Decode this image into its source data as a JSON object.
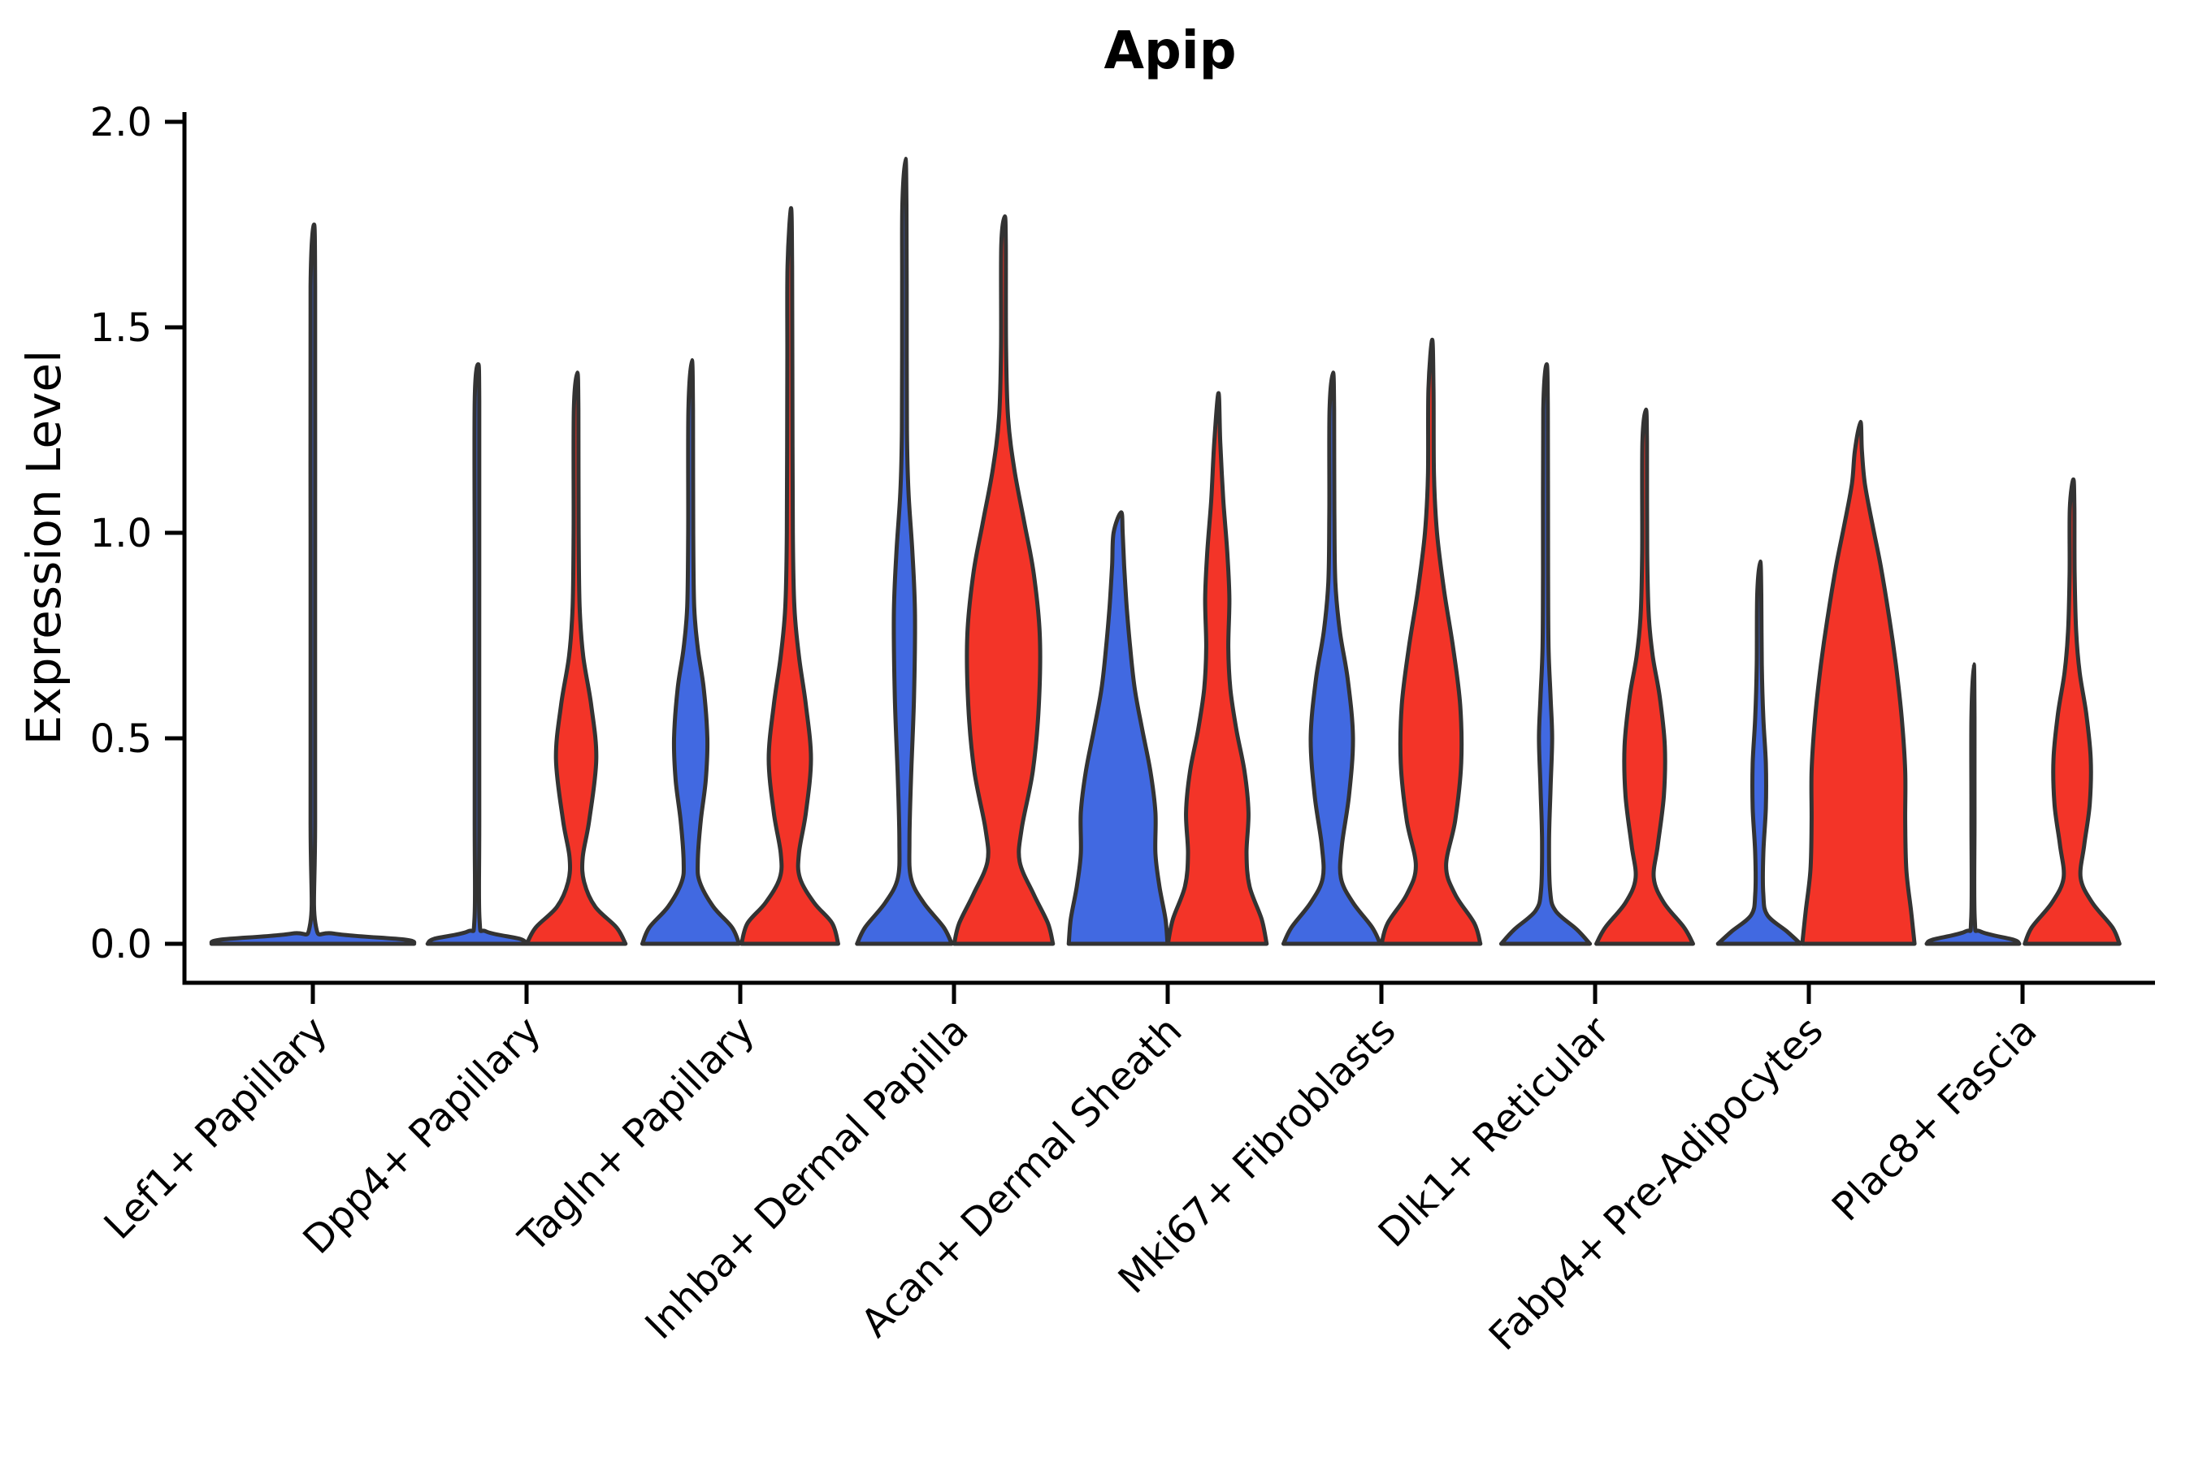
{
  "chart_data": {
    "type": "violin",
    "title": "Apip",
    "xlabel": "",
    "ylabel": "Expression Level",
    "ylim": [
      0.0,
      2.0
    ],
    "yticks": [
      "0.0",
      "0.5",
      "1.0",
      "1.5",
      "2.0"
    ],
    "ytick_values": [
      0.0,
      0.5,
      1.0,
      1.5,
      2.0
    ],
    "grid": false,
    "legend_position": "none",
    "categories": [
      "Lef1+ Papillary",
      "Dpp4+ Papillary",
      "Tagln+ Papillary",
      "Inhba+ Dermal Papilla",
      "Acan+ Dermal Sheath",
      "Mki67+ Fibroblasts",
      "Dlk1+ Reticular",
      "Fabp4+ Pre-Adipocytes",
      "Plac8+ Fascia"
    ],
    "colors": {
      "group1": "#4169E1",
      "group2": "#F33428",
      "edge": "#333333",
      "axis": "#000000"
    },
    "violins": [
      {
        "category_index": 0,
        "category": "Lef1+ Papillary",
        "group": "single",
        "color": "group1",
        "max": 1.75,
        "half_width": 126,
        "profile": [
          [
            0,
            0.99
          ],
          [
            0.01,
            0.9
          ],
          [
            0.025,
            0.2
          ],
          [
            0.05,
            0.025
          ],
          [
            0.3,
            0.022
          ],
          [
            1.0,
            0.022
          ],
          [
            1.6,
            0.022
          ],
          [
            1.75,
            0.012
          ]
        ]
      },
      {
        "category_index": 1,
        "category": "Dpp4+ Papillary",
        "group": "group1",
        "color": "group1",
        "max": 1.41,
        "half_width": 62,
        "profile": [
          [
            0,
            0.98
          ],
          [
            0.012,
            0.85
          ],
          [
            0.03,
            0.18
          ],
          [
            0.06,
            0.05
          ],
          [
            0.3,
            0.045
          ],
          [
            0.9,
            0.045
          ],
          [
            1.32,
            0.045
          ],
          [
            1.41,
            0.025
          ]
        ]
      },
      {
        "category_index": 1,
        "category": "Dpp4+ Papillary",
        "group": "group2",
        "color": "group2",
        "max": 1.39,
        "half_width": 62,
        "profile": [
          [
            0,
            0.98
          ],
          [
            0.04,
            0.8
          ],
          [
            0.09,
            0.38
          ],
          [
            0.15,
            0.16
          ],
          [
            0.21,
            0.13
          ],
          [
            0.3,
            0.26
          ],
          [
            0.45,
            0.4
          ],
          [
            0.58,
            0.3
          ],
          [
            0.7,
            0.14
          ],
          [
            0.82,
            0.07
          ],
          [
            1.0,
            0.05
          ],
          [
            1.3,
            0.045
          ],
          [
            1.39,
            0.025
          ]
        ]
      },
      {
        "category_index": 2,
        "category": "Tagln+ Papillary",
        "group": "group1",
        "color": "group1",
        "max": 1.42,
        "half_width": 62,
        "profile": [
          [
            0,
            0.96
          ],
          [
            0.04,
            0.82
          ],
          [
            0.09,
            0.45
          ],
          [
            0.15,
            0.18
          ],
          [
            0.2,
            0.14
          ],
          [
            0.3,
            0.2
          ],
          [
            0.4,
            0.3
          ],
          [
            0.5,
            0.33
          ],
          [
            0.62,
            0.26
          ],
          [
            0.72,
            0.14
          ],
          [
            0.82,
            0.07
          ],
          [
            1.0,
            0.05
          ],
          [
            1.3,
            0.045
          ],
          [
            1.42,
            0.025
          ]
        ]
      },
      {
        "category_index": 2,
        "category": "Tagln+ Papillary",
        "group": "group2",
        "color": "group2",
        "max": 1.79,
        "half_width": 62,
        "profile": [
          [
            0,
            0.96
          ],
          [
            0.05,
            0.84
          ],
          [
            0.1,
            0.48
          ],
          [
            0.16,
            0.2
          ],
          [
            0.22,
            0.18
          ],
          [
            0.32,
            0.32
          ],
          [
            0.45,
            0.42
          ],
          [
            0.58,
            0.32
          ],
          [
            0.7,
            0.18
          ],
          [
            0.82,
            0.09
          ],
          [
            1.0,
            0.06
          ],
          [
            1.4,
            0.05
          ],
          [
            1.65,
            0.045
          ],
          [
            1.79,
            0.025
          ]
        ]
      },
      {
        "category_index": 3,
        "category": "Inhba+ Dermal Papilla",
        "group": "group1",
        "color": "group1",
        "max": 1.91,
        "half_width": 62,
        "profile": [
          [
            0,
            0.94
          ],
          [
            0.04,
            0.78
          ],
          [
            0.1,
            0.38
          ],
          [
            0.16,
            0.13
          ],
          [
            0.25,
            0.1
          ],
          [
            0.4,
            0.13
          ],
          [
            0.6,
            0.19
          ],
          [
            0.8,
            0.21
          ],
          [
            0.95,
            0.16
          ],
          [
            1.1,
            0.08
          ],
          [
            1.25,
            0.05
          ],
          [
            1.6,
            0.045
          ],
          [
            1.8,
            0.04
          ],
          [
            1.91,
            0.022
          ]
        ]
      },
      {
        "category_index": 3,
        "category": "Inhba+ Dermal Papilla",
        "group": "group2",
        "color": "group2",
        "max": 1.77,
        "half_width": 62,
        "profile": [
          [
            0,
            0.98
          ],
          [
            0.05,
            0.88
          ],
          [
            0.12,
            0.6
          ],
          [
            0.2,
            0.32
          ],
          [
            0.28,
            0.36
          ],
          [
            0.42,
            0.58
          ],
          [
            0.58,
            0.7
          ],
          [
            0.75,
            0.72
          ],
          [
            0.9,
            0.6
          ],
          [
            1.02,
            0.42
          ],
          [
            1.15,
            0.22
          ],
          [
            1.28,
            0.09
          ],
          [
            1.45,
            0.05
          ],
          [
            1.7,
            0.045
          ],
          [
            1.77,
            0.025
          ]
        ]
      },
      {
        "category_index": 4,
        "category": "Acan+ Dermal Sheath",
        "group": "group1",
        "color": "group1",
        "max": 1.05,
        "half_width": 62,
        "profile": [
          [
            0,
            0.98
          ],
          [
            0.06,
            0.94
          ],
          [
            0.14,
            0.82
          ],
          [
            0.22,
            0.74
          ],
          [
            0.32,
            0.74
          ],
          [
            0.42,
            0.64
          ],
          [
            0.52,
            0.48
          ],
          [
            0.62,
            0.33
          ],
          [
            0.72,
            0.24
          ],
          [
            0.82,
            0.17
          ],
          [
            0.92,
            0.12
          ],
          [
            1.0,
            0.09
          ],
          [
            1.05,
            0.06
          ]
        ]
      },
      {
        "category_index": 4,
        "category": "Acan+ Dermal Sheath",
        "group": "group2",
        "color": "group2",
        "max": 1.34,
        "half_width": 62,
        "profile": [
          [
            0,
            0.98
          ],
          [
            0.06,
            0.88
          ],
          [
            0.14,
            0.64
          ],
          [
            0.22,
            0.58
          ],
          [
            0.32,
            0.62
          ],
          [
            0.42,
            0.54
          ],
          [
            0.52,
            0.38
          ],
          [
            0.62,
            0.26
          ],
          [
            0.72,
            0.22
          ],
          [
            0.84,
            0.24
          ],
          [
            0.95,
            0.2
          ],
          [
            1.08,
            0.12
          ],
          [
            1.22,
            0.06
          ],
          [
            1.34,
            0.025
          ]
        ]
      },
      {
        "category_index": 5,
        "category": "Mki67+ Fibroblasts",
        "group": "group1",
        "color": "group1",
        "max": 1.39,
        "half_width": 62,
        "profile": [
          [
            0,
            0.96
          ],
          [
            0.04,
            0.8
          ],
          [
            0.1,
            0.42
          ],
          [
            0.16,
            0.18
          ],
          [
            0.24,
            0.2
          ],
          [
            0.36,
            0.34
          ],
          [
            0.5,
            0.42
          ],
          [
            0.64,
            0.32
          ],
          [
            0.76,
            0.16
          ],
          [
            0.88,
            0.07
          ],
          [
            1.05,
            0.05
          ],
          [
            1.3,
            0.045
          ],
          [
            1.39,
            0.025
          ]
        ]
      },
      {
        "category_index": 5,
        "category": "Mki67+ Fibroblasts",
        "group": "group2",
        "color": "group2",
        "max": 1.47,
        "half_width": 62,
        "profile": [
          [
            0,
            0.98
          ],
          [
            0.05,
            0.86
          ],
          [
            0.12,
            0.48
          ],
          [
            0.19,
            0.3
          ],
          [
            0.3,
            0.48
          ],
          [
            0.44,
            0.6
          ],
          [
            0.58,
            0.58
          ],
          [
            0.72,
            0.44
          ],
          [
            0.86,
            0.26
          ],
          [
            1.0,
            0.12
          ],
          [
            1.14,
            0.06
          ],
          [
            1.35,
            0.05
          ],
          [
            1.47,
            0.025
          ]
        ]
      },
      {
        "category_index": 6,
        "category": "Dlk1+ Reticular",
        "group": "group1",
        "color": "group1",
        "max": 1.41,
        "half_width": 62,
        "profile": [
          [
            0,
            0.88
          ],
          [
            0.035,
            0.62
          ],
          [
            0.08,
            0.2
          ],
          [
            0.13,
            0.09
          ],
          [
            0.25,
            0.07
          ],
          [
            0.38,
            0.1
          ],
          [
            0.5,
            0.13
          ],
          [
            0.6,
            0.1
          ],
          [
            0.72,
            0.06
          ],
          [
            0.9,
            0.05
          ],
          [
            1.3,
            0.045
          ],
          [
            1.41,
            0.022
          ]
        ]
      },
      {
        "category_index": 6,
        "category": "Dlk1+ Reticular",
        "group": "group2",
        "color": "group2",
        "max": 1.3,
        "half_width": 62,
        "profile": [
          [
            0,
            0.96
          ],
          [
            0.04,
            0.78
          ],
          [
            0.1,
            0.38
          ],
          [
            0.16,
            0.18
          ],
          [
            0.24,
            0.26
          ],
          [
            0.36,
            0.38
          ],
          [
            0.48,
            0.4
          ],
          [
            0.6,
            0.3
          ],
          [
            0.7,
            0.16
          ],
          [
            0.8,
            0.08
          ],
          [
            0.95,
            0.05
          ],
          [
            1.22,
            0.045
          ],
          [
            1.3,
            0.025
          ]
        ]
      },
      {
        "category_index": 7,
        "category": "Fabp4+ Pre-Adipocytes",
        "group": "group1",
        "color": "group1",
        "max": 0.93,
        "half_width": 62,
        "profile": [
          [
            0,
            0.82
          ],
          [
            0.03,
            0.55
          ],
          [
            0.07,
            0.16
          ],
          [
            0.12,
            0.08
          ],
          [
            0.22,
            0.08
          ],
          [
            0.33,
            0.13
          ],
          [
            0.44,
            0.13
          ],
          [
            0.55,
            0.08
          ],
          [
            0.68,
            0.05
          ],
          [
            0.85,
            0.04
          ],
          [
            0.93,
            0.02
          ]
        ]
      },
      {
        "category_index": 7,
        "category": "Fabp4+ Pre-Adipocytes",
        "group": "group2",
        "color": "group2",
        "max": 1.27,
        "half_width": 72,
        "profile": [
          [
            0,
            0.96
          ],
          [
            0.08,
            0.9
          ],
          [
            0.18,
            0.82
          ],
          [
            0.3,
            0.8
          ],
          [
            0.42,
            0.8
          ],
          [
            0.55,
            0.74
          ],
          [
            0.68,
            0.64
          ],
          [
            0.8,
            0.52
          ],
          [
            0.92,
            0.38
          ],
          [
            1.02,
            0.24
          ],
          [
            1.12,
            0.11
          ],
          [
            1.2,
            0.06
          ],
          [
            1.27,
            0.035
          ]
        ]
      },
      {
        "category_index": 8,
        "category": "Plac8+ Fascia",
        "group": "group1",
        "color": "group1",
        "max": 0.68,
        "half_width": 62,
        "profile": [
          [
            0,
            0.92
          ],
          [
            0.01,
            0.8
          ],
          [
            0.03,
            0.15
          ],
          [
            0.06,
            0.035
          ],
          [
            0.3,
            0.03
          ],
          [
            0.55,
            0.03
          ],
          [
            0.68,
            0.018
          ]
        ]
      },
      {
        "category_index": 8,
        "category": "Plac8+ Fascia",
        "group": "group2",
        "color": "group2",
        "max": 1.13,
        "half_width": 62,
        "profile": [
          [
            0,
            0.94
          ],
          [
            0.04,
            0.8
          ],
          [
            0.1,
            0.4
          ],
          [
            0.16,
            0.17
          ],
          [
            0.24,
            0.24
          ],
          [
            0.34,
            0.35
          ],
          [
            0.45,
            0.37
          ],
          [
            0.56,
            0.28
          ],
          [
            0.66,
            0.15
          ],
          [
            0.76,
            0.08
          ],
          [
            0.9,
            0.05
          ],
          [
            1.06,
            0.045
          ],
          [
            1.13,
            0.025
          ]
        ]
      }
    ]
  }
}
